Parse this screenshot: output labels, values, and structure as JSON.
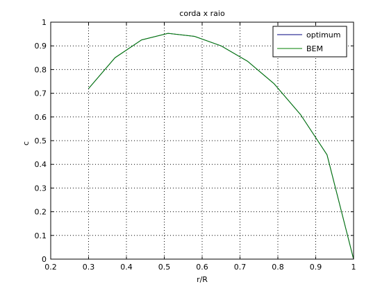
{
  "chart_data": {
    "type": "line",
    "title": "corda x raio",
    "xlabel": "r/R",
    "ylabel": "c",
    "xlim": [
      0.2,
      1
    ],
    "ylim": [
      0,
      1
    ],
    "xticks": [
      0.2,
      0.3,
      0.4,
      0.5,
      0.6,
      0.7,
      0.8,
      0.9,
      1
    ],
    "yticks": [
      0,
      0.1,
      0.2,
      0.3,
      0.4,
      0.5,
      0.6,
      0.7,
      0.8,
      0.9,
      1
    ],
    "xtick_labels": [
      "0.2",
      "0.3",
      "0.4",
      "0.5",
      "0.6",
      "0.7",
      "0.8",
      "0.9",
      "1"
    ],
    "ytick_labels": [
      "0",
      "0.1",
      "0.2",
      "0.3",
      "0.4",
      "0.5",
      "0.6",
      "0.7",
      "0.8",
      "0.9",
      "1"
    ],
    "grid": true,
    "legend_position": "top-right",
    "series": [
      {
        "name": "optimum",
        "color": "#00007f",
        "x": [
          0.3,
          0.37,
          0.44,
          0.51,
          0.58,
          0.65,
          0.72,
          0.79,
          0.86,
          0.93,
          1.0
        ],
        "y": [
          0.72,
          0.85,
          0.925,
          0.953,
          0.94,
          0.9,
          0.835,
          0.74,
          0.61,
          0.44,
          0.0
        ]
      },
      {
        "name": "BEM",
        "color": "#007f00",
        "x": [
          0.3,
          0.37,
          0.44,
          0.51,
          0.58,
          0.65,
          0.72,
          0.79,
          0.86,
          0.93,
          1.0
        ],
        "y": [
          0.72,
          0.85,
          0.925,
          0.953,
          0.94,
          0.9,
          0.835,
          0.74,
          0.61,
          0.44,
          0.0
        ]
      }
    ]
  }
}
